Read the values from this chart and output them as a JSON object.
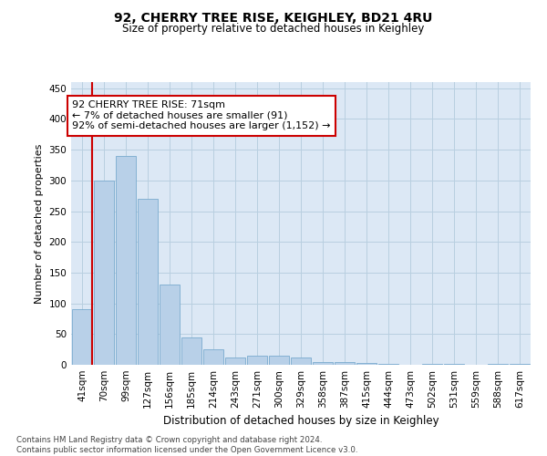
{
  "title1": "92, CHERRY TREE RISE, KEIGHLEY, BD21 4RU",
  "title2": "Size of property relative to detached houses in Keighley",
  "xlabel": "Distribution of detached houses by size in Keighley",
  "ylabel": "Number of detached properties",
  "categories": [
    "41sqm",
    "70sqm",
    "99sqm",
    "127sqm",
    "156sqm",
    "185sqm",
    "214sqm",
    "243sqm",
    "271sqm",
    "300sqm",
    "329sqm",
    "358sqm",
    "387sqm",
    "415sqm",
    "444sqm",
    "473sqm",
    "502sqm",
    "531sqm",
    "559sqm",
    "588sqm",
    "617sqm"
  ],
  "values": [
    91,
    300,
    340,
    270,
    130,
    45,
    25,
    12,
    15,
    15,
    12,
    5,
    5,
    3,
    2,
    0,
    2,
    2,
    0,
    2,
    2
  ],
  "bar_color": "#b8d0e8",
  "bar_edge_color": "#7aaace",
  "highlight_line_color": "#cc0000",
  "annotation_text": "92 CHERRY TREE RISE: 71sqm\n← 7% of detached houses are smaller (91)\n92% of semi-detached houses are larger (1,152) →",
  "annotation_box_color": "#ffffff",
  "annotation_box_edge_color": "#cc0000",
  "ylim": [
    0,
    460
  ],
  "yticks": [
    0,
    50,
    100,
    150,
    200,
    250,
    300,
    350,
    400,
    450
  ],
  "footer_text": "Contains HM Land Registry data © Crown copyright and database right 2024.\nContains public sector information licensed under the Open Government Licence v3.0.",
  "background_color": "#ffffff",
  "plot_bg_color": "#dce8f5",
  "grid_color": "#b8cfe0"
}
